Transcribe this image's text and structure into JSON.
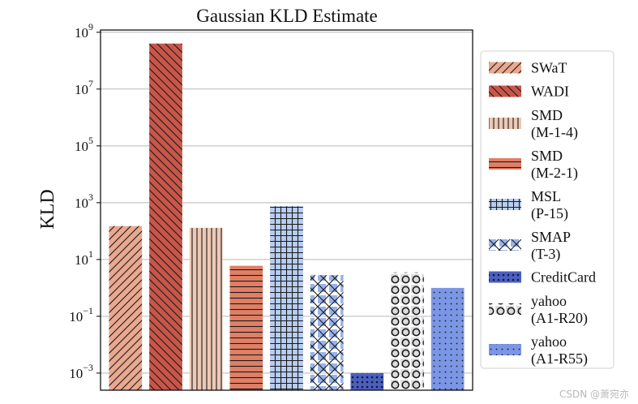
{
  "chart_data": {
    "type": "bar",
    "title": "Gaussian KLD Estimate",
    "xlabel": "",
    "ylabel": "KLD",
    "yscale": "log",
    "ylim": [
      0.00025,
      1200000000.0
    ],
    "yticks": [
      {
        "value": 0.001,
        "base": "10",
        "exp": "−3"
      },
      {
        "value": 0.1,
        "base": "10",
        "exp": "−1"
      },
      {
        "value": 10,
        "base": "10",
        "exp": "1"
      },
      {
        "value": 1000,
        "base": "10",
        "exp": "3"
      },
      {
        "value": 100000,
        "base": "10",
        "exp": "5"
      },
      {
        "value": 10000000,
        "base": "10",
        "exp": "7"
      },
      {
        "value": 1000000000,
        "base": "10",
        "exp": "9"
      }
    ],
    "grid": "horizontal",
    "legend_position": "right-outside",
    "series": [
      {
        "legend": [
          "SWaT"
        ],
        "value": 150,
        "color": "#e9a88f",
        "hatch": "forward-diagonal"
      },
      {
        "legend": [
          "WADI"
        ],
        "value": 400000000,
        "color": "#c8564a",
        "hatch": "back-diagonal"
      },
      {
        "legend": [
          "SMD",
          "(M-1-4)"
        ],
        "value": 130,
        "color": "#edc8b4",
        "hatch": "vertical"
      },
      {
        "legend": [
          "SMD",
          "(M-2-1)"
        ],
        "value": 6,
        "color": "#e07f66",
        "hatch": "horizontal"
      },
      {
        "legend": [
          "MSL",
          "(P-15)"
        ],
        "value": 750,
        "color": "#b8cdf0",
        "hatch": "grid"
      },
      {
        "legend": [
          "SMAP",
          "(T-3)"
        ],
        "value": 2.8,
        "color": "#98b3ec",
        "hatch": "crosshatch"
      },
      {
        "legend": [
          "CreditCard"
        ],
        "value": 0.001,
        "color": "#4a5fc4",
        "hatch": "small-dots"
      },
      {
        "legend": [
          "yahoo",
          "(A1-R20)"
        ],
        "value": 3.5,
        "color": "#dcdcdc",
        "hatch": "circles"
      },
      {
        "legend": [
          "yahoo",
          "(A1-R55)"
        ],
        "value": 1,
        "color": "#7b96e4",
        "hatch": "dots"
      }
    ]
  },
  "watermark": "CSDN @萧宛亦"
}
